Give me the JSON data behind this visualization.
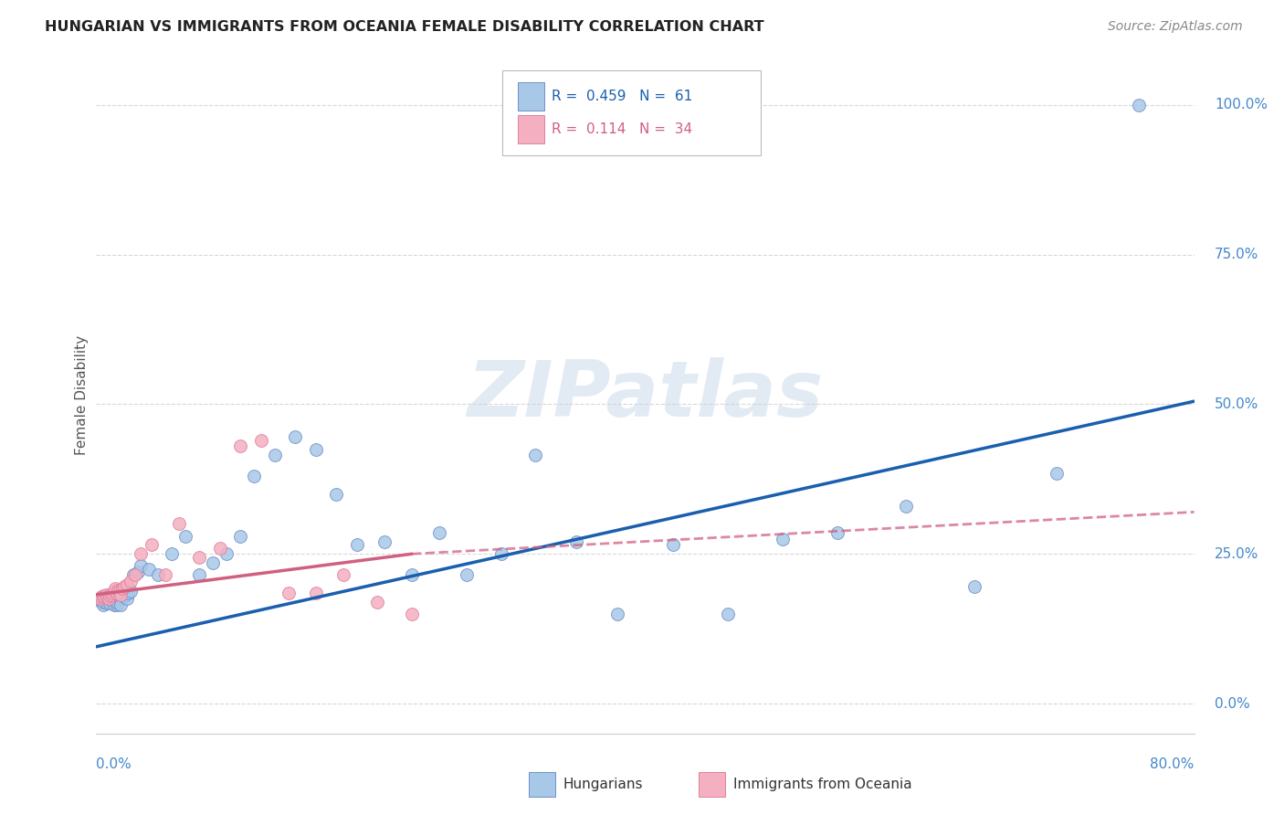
{
  "title": "HUNGARIAN VS IMMIGRANTS FROM OCEANIA FEMALE DISABILITY CORRELATION CHART",
  "source": "Source: ZipAtlas.com",
  "ylabel": "Female Disability",
  "legend_blue_R": "0.459",
  "legend_blue_N": "61",
  "legend_pink_R": "0.114",
  "legend_pink_N": "34",
  "legend_blue_label": "Hungarians",
  "legend_pink_label": "Immigrants from Oceania",
  "watermark": "ZIPatlas",
  "blue_scatter_color": "#a8c8e8",
  "pink_scatter_color": "#f4b0c0",
  "blue_edge_color": "#7090c8",
  "pink_edge_color": "#e080a0",
  "blue_line_color": "#1a5faf",
  "pink_line_color": "#d06080",
  "background_color": "#ffffff",
  "grid_color": "#d8d8d8",
  "right_label_color": "#4488cc",
  "xlim": [
    0.0,
    0.8
  ],
  "ylim": [
    -0.05,
    1.08
  ],
  "yticks": [
    0.0,
    0.25,
    0.5,
    0.75,
    1.0
  ],
  "ytick_labels": [
    "0.0%",
    "25.0%",
    "50.0%",
    "75.0%",
    "100.0%"
  ],
  "blue_x": [
    0.003,
    0.004,
    0.005,
    0.006,
    0.007,
    0.008,
    0.008,
    0.009,
    0.01,
    0.01,
    0.011,
    0.012,
    0.013,
    0.013,
    0.014,
    0.015,
    0.015,
    0.016,
    0.016,
    0.017,
    0.018,
    0.018,
    0.019,
    0.02,
    0.021,
    0.022,
    0.023,
    0.025,
    0.027,
    0.03,
    0.032,
    0.038,
    0.045,
    0.055,
    0.065,
    0.075,
    0.085,
    0.095,
    0.105,
    0.115,
    0.13,
    0.145,
    0.16,
    0.175,
    0.19,
    0.21,
    0.23,
    0.25,
    0.27,
    0.295,
    0.32,
    0.35,
    0.38,
    0.42,
    0.46,
    0.5,
    0.54,
    0.59,
    0.64,
    0.7,
    0.76
  ],
  "blue_y": [
    0.175,
    0.17,
    0.165,
    0.17,
    0.172,
    0.175,
    0.168,
    0.172,
    0.175,
    0.168,
    0.172,
    0.175,
    0.178,
    0.165,
    0.172,
    0.178,
    0.165,
    0.182,
    0.168,
    0.175,
    0.178,
    0.165,
    0.182,
    0.178,
    0.182,
    0.175,
    0.185,
    0.188,
    0.215,
    0.22,
    0.23,
    0.225,
    0.215,
    0.25,
    0.28,
    0.215,
    0.235,
    0.25,
    0.28,
    0.38,
    0.415,
    0.445,
    0.425,
    0.35,
    0.265,
    0.27,
    0.215,
    0.285,
    0.215,
    0.25,
    0.415,
    0.27,
    0.15,
    0.265,
    0.15,
    0.275,
    0.285,
    0.33,
    0.195,
    0.385,
    1.0
  ],
  "pink_x": [
    0.003,
    0.004,
    0.005,
    0.006,
    0.007,
    0.008,
    0.009,
    0.01,
    0.011,
    0.012,
    0.013,
    0.014,
    0.015,
    0.016,
    0.017,
    0.018,
    0.019,
    0.02,
    0.022,
    0.025,
    0.028,
    0.032,
    0.04,
    0.05,
    0.06,
    0.075,
    0.09,
    0.105,
    0.12,
    0.14,
    0.16,
    0.18,
    0.205,
    0.23
  ],
  "pink_y": [
    0.175,
    0.178,
    0.18,
    0.178,
    0.182,
    0.178,
    0.175,
    0.18,
    0.182,
    0.185,
    0.188,
    0.192,
    0.185,
    0.19,
    0.188,
    0.182,
    0.192,
    0.195,
    0.198,
    0.205,
    0.215,
    0.25,
    0.265,
    0.215,
    0.3,
    0.245,
    0.26,
    0.43,
    0.44,
    0.185,
    0.185,
    0.215,
    0.17,
    0.15
  ],
  "blue_line_x0": 0.0,
  "blue_line_y0": 0.095,
  "blue_line_x1": 0.8,
  "blue_line_y1": 0.505,
  "pink_line_x0": 0.0,
  "pink_line_y0": 0.182,
  "pink_line_xsolid": 0.23,
  "pink_line_ysolid": 0.25,
  "pink_line_x1": 0.8,
  "pink_line_y1": 0.32
}
